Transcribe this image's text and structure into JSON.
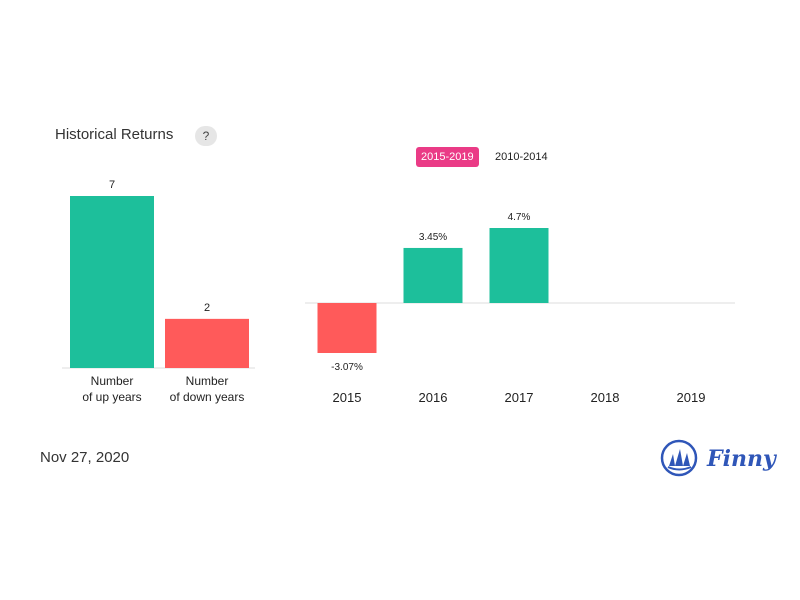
{
  "title": "Historical Returns",
  "help_label": "?",
  "tabs": [
    {
      "label": "2015-2019",
      "active": true
    },
    {
      "label": "2010-2014",
      "active": false
    }
  ],
  "date": "Nov 27, 2020",
  "brand": "Finny",
  "colors": {
    "positive": "#1dbf9b",
    "negative": "#ff5a5a",
    "tab_active": "#ea3b86",
    "brand": "#2f56b8"
  },
  "chart_data": [
    {
      "type": "bar",
      "categories": [
        "Number of up years",
        "Number of down years"
      ],
      "category_lines": [
        [
          "Number",
          "of up years"
        ],
        [
          "Number",
          "of down years"
        ]
      ],
      "values": [
        7,
        2
      ],
      "value_labels": [
        "7",
        "2"
      ],
      "colors": [
        "#1dbf9b",
        "#ff5a5a"
      ],
      "ylim": [
        0,
        7
      ]
    },
    {
      "type": "bar",
      "categories": [
        "2015",
        "2016",
        "2017",
        "2018",
        "2019"
      ],
      "values": [
        -3.07,
        3.45,
        4.7,
        null,
        null
      ],
      "value_labels": [
        "-3.07%",
        "3.45%",
        "4.7%",
        "",
        ""
      ],
      "ylim": [
        -3.07,
        4.7
      ]
    }
  ]
}
